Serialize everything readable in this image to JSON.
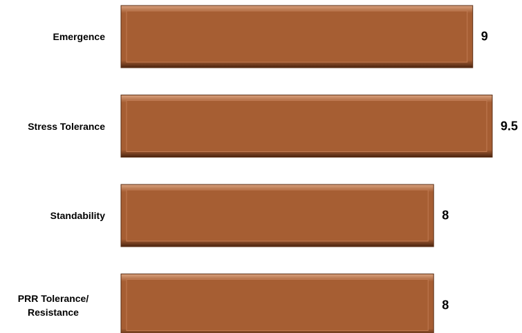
{
  "chart_data": {
    "type": "bar",
    "orientation": "horizontal",
    "categories": [
      "Emergence",
      "Stress Tolerance",
      "Standability",
      "PRR Tolerance/ Resistance"
    ],
    "values": [
      9,
      9.5,
      8,
      8
    ],
    "color": "#a65e33"
  }
}
